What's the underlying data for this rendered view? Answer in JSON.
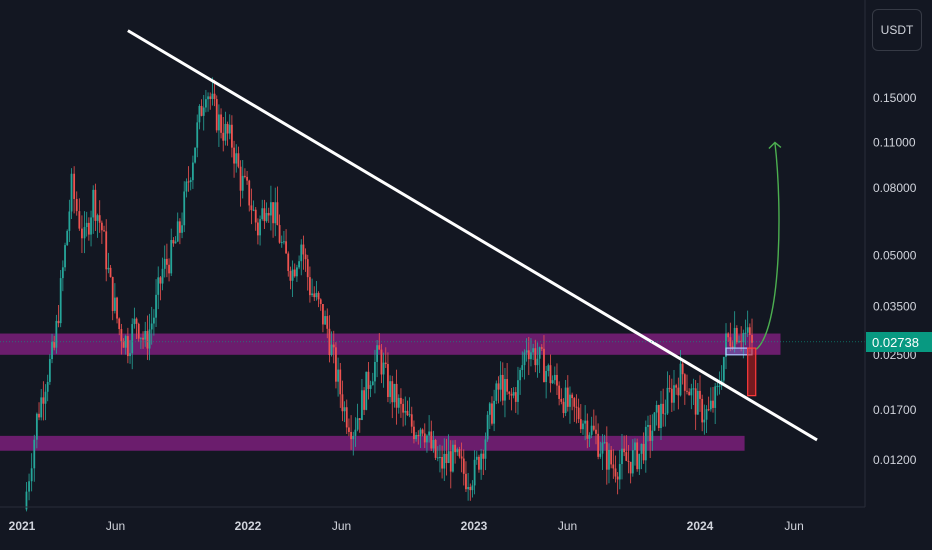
{
  "currency_button": "USDT",
  "last_price_label": "0.02738",
  "colors": {
    "background": "#131722",
    "up": "#26a69a",
    "down": "#ef5350",
    "zone": "#7b1f7a",
    "trendline": "#ffffff",
    "projection_arrow": "#4caf50",
    "last_price": "#089981",
    "axis_text": "#d1d4dc"
  },
  "chart_data": {
    "type": "candlestick",
    "title": "",
    "y_scale": "log",
    "y_ticks": [
      "0.15000",
      "0.11000",
      "0.08000",
      "0.05000",
      "0.03500",
      "0.02500",
      "0.01700",
      "0.01200"
    ],
    "x_ticks": [
      "2021",
      "Jun",
      "2022",
      "Jun",
      "2023",
      "Jun",
      "2024",
      "Jun"
    ],
    "x_ticks_bold": [
      "2021",
      "2022",
      "2023",
      "2024"
    ],
    "weekly_close_path": [
      [
        "2021-01-04",
        0.0085
      ],
      [
        "2021-01-25",
        0.016
      ],
      [
        "2021-02-08",
        0.021
      ],
      [
        "2021-02-22",
        0.026
      ],
      [
        "2021-03-08",
        0.045
      ],
      [
        "2021-03-22",
        0.08
      ],
      [
        "2021-04-12",
        0.055
      ],
      [
        "2021-04-26",
        0.075
      ],
      [
        "2021-05-10",
        0.06
      ],
      [
        "2021-05-24",
        0.04
      ],
      [
        "2021-06-07",
        0.03
      ],
      [
        "2021-06-21",
        0.027
      ],
      [
        "2021-07-05",
        0.032
      ],
      [
        "2021-07-19",
        0.027
      ],
      [
        "2021-08-02",
        0.033
      ],
      [
        "2021-08-16",
        0.045
      ],
      [
        "2021-08-30",
        0.05
      ],
      [
        "2021-09-13",
        0.06
      ],
      [
        "2021-09-27",
        0.085
      ],
      [
        "2021-10-11",
        0.12
      ],
      [
        "2021-10-25",
        0.165
      ],
      [
        "2021-11-08",
        0.135
      ],
      [
        "2021-11-22",
        0.12
      ],
      [
        "2021-12-06",
        0.11
      ],
      [
        "2021-12-20",
        0.085
      ],
      [
        "2022-01-03",
        0.075
      ],
      [
        "2022-01-17",
        0.06
      ],
      [
        "2022-01-31",
        0.075
      ],
      [
        "2022-02-14",
        0.065
      ],
      [
        "2022-02-28",
        0.05
      ],
      [
        "2022-03-14",
        0.045
      ],
      [
        "2022-03-28",
        0.055
      ],
      [
        "2022-04-11",
        0.04
      ],
      [
        "2022-04-25",
        0.035
      ],
      [
        "2022-05-09",
        0.03
      ],
      [
        "2022-05-23",
        0.022
      ],
      [
        "2022-06-06",
        0.017
      ],
      [
        "2022-06-20",
        0.015
      ],
      [
        "2022-07-04",
        0.018
      ],
      [
        "2022-07-18",
        0.022
      ],
      [
        "2022-08-01",
        0.025
      ],
      [
        "2022-08-15",
        0.02
      ],
      [
        "2022-08-29",
        0.018
      ],
      [
        "2022-09-12",
        0.016
      ],
      [
        "2022-09-26",
        0.015
      ],
      [
        "2022-10-10",
        0.0155
      ],
      [
        "2022-10-24",
        0.013
      ],
      [
        "2022-11-07",
        0.0115
      ],
      [
        "2022-11-21",
        0.0122
      ],
      [
        "2022-12-05",
        0.0118
      ],
      [
        "2022-12-19",
        0.0107
      ],
      [
        "2023-01-02",
        0.011
      ],
      [
        "2023-01-16",
        0.0135
      ],
      [
        "2023-01-30",
        0.017
      ],
      [
        "2023-02-13",
        0.0205
      ],
      [
        "2023-02-27",
        0.018
      ],
      [
        "2023-03-13",
        0.02
      ],
      [
        "2023-03-27",
        0.027
      ],
      [
        "2023-04-10",
        0.025
      ],
      [
        "2023-04-24",
        0.023
      ],
      [
        "2023-05-08",
        0.021
      ],
      [
        "2023-05-22",
        0.019
      ],
      [
        "2023-06-05",
        0.017
      ],
      [
        "2023-06-19",
        0.0165
      ],
      [
        "2023-07-03",
        0.0155
      ],
      [
        "2023-07-17",
        0.014
      ],
      [
        "2023-07-31",
        0.0125
      ],
      [
        "2023-08-14",
        0.0115
      ],
      [
        "2023-08-28",
        0.0118
      ],
      [
        "2023-09-11",
        0.012
      ],
      [
        "2023-09-25",
        0.0125
      ],
      [
        "2023-10-09",
        0.014
      ],
      [
        "2023-10-23",
        0.016
      ],
      [
        "2023-11-06",
        0.0175
      ],
      [
        "2023-11-20",
        0.02
      ],
      [
        "2023-12-04",
        0.022
      ],
      [
        "2023-12-18",
        0.019
      ],
      [
        "2024-01-01",
        0.017
      ],
      [
        "2024-01-15",
        0.0165
      ],
      [
        "2024-01-29",
        0.019
      ],
      [
        "2024-02-12",
        0.027
      ],
      [
        "2024-02-26",
        0.03
      ],
      [
        "2024-03-11",
        0.029
      ],
      [
        "2024-03-25",
        0.02738
      ]
    ],
    "zones": [
      {
        "from_date": "2021-01-01",
        "to_date": "2024-05-10",
        "low": 0.025,
        "high": 0.029
      },
      {
        "from_date": "2021-01-01",
        "to_date": "2024-03-13",
        "low": 0.0128,
        "high": 0.0142
      }
    ],
    "trendline": {
      "from": [
        "2021-06-21",
        0.24
      ],
      "to": [
        "2024-07-08",
        0.0138
      ]
    },
    "projection_arrow": {
      "from": [
        "2024-04-01",
        0.026
      ],
      "to": [
        "2024-05-01",
        0.11
      ]
    },
    "highlight_boxes": [
      {
        "from_date": "2024-02-12",
        "to_date": "2024-03-25",
        "low": 0.025,
        "high": 0.0262
      },
      {
        "from_date": "2024-03-18",
        "to_date": "2024-03-31",
        "low": 0.0188,
        "high": 0.0262
      }
    ],
    "last_price": 0.02738
  }
}
